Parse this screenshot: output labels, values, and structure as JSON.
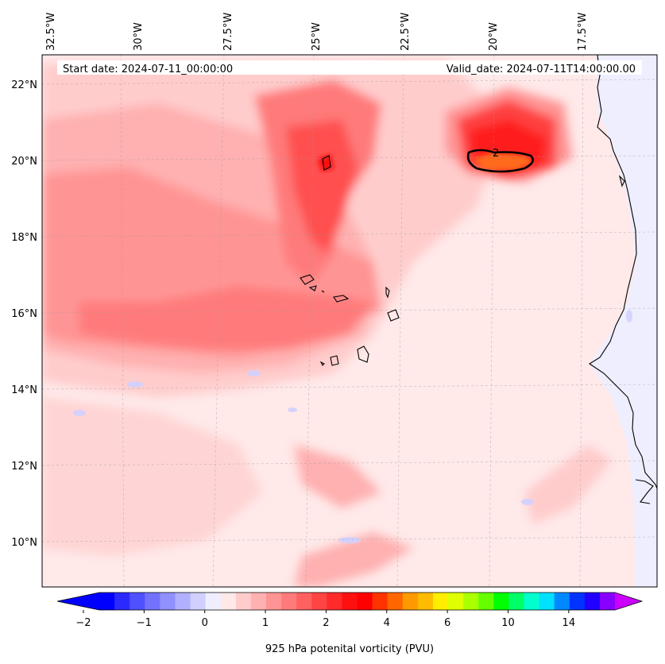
{
  "header": {
    "start_date": "Start date: 2024-07-11_00:00:00",
    "valid_date": "Valid_date: 2024-07-11T14:00:00.00"
  },
  "axes": {
    "longitude_labels": [
      "32.5°W",
      "30°W",
      "27.5°W",
      "25°W",
      "22.5°W",
      "20°W",
      "17.5°W"
    ],
    "latitude_labels": [
      "22°N",
      "20°N",
      "18°N",
      "16°N",
      "14°N",
      "12°N",
      "10°N"
    ]
  },
  "contour": {
    "label": "2"
  },
  "colorbar": {
    "title": "925 hPa potenital vorticity (PVU)",
    "tick_labels": [
      "−2",
      "−1",
      "0",
      "1",
      "2",
      "4",
      "6",
      "10",
      "14"
    ],
    "colors": [
      "#0000ff",
      "#2a2aff",
      "#5050ff",
      "#7272ff",
      "#9090ff",
      "#b0b0ff",
      "#d0d0ff",
      "#eeeeff",
      "#ffe8e8",
      "#ffcccc",
      "#ffb0b0",
      "#ff9494",
      "#ff7a7a",
      "#ff6060",
      "#ff4444",
      "#ff2a2a",
      "#ff1010",
      "#ff0000",
      "#ff3300",
      "#ff6600",
      "#ff9900",
      "#ffbb00",
      "#ffee00",
      "#ddff00",
      "#aaff00",
      "#66ff00",
      "#00ff00",
      "#00ff66",
      "#00ffcc",
      "#00e0ff",
      "#0088ff",
      "#0033ff",
      "#2200ff",
      "#8800ff"
    ],
    "extend_low_color": "#0000ff",
    "extend_high_color": "#cc00ff"
  },
  "colors": {
    "ocean_base": "#ffe9e9",
    "land_neg": "#eeeeff"
  }
}
